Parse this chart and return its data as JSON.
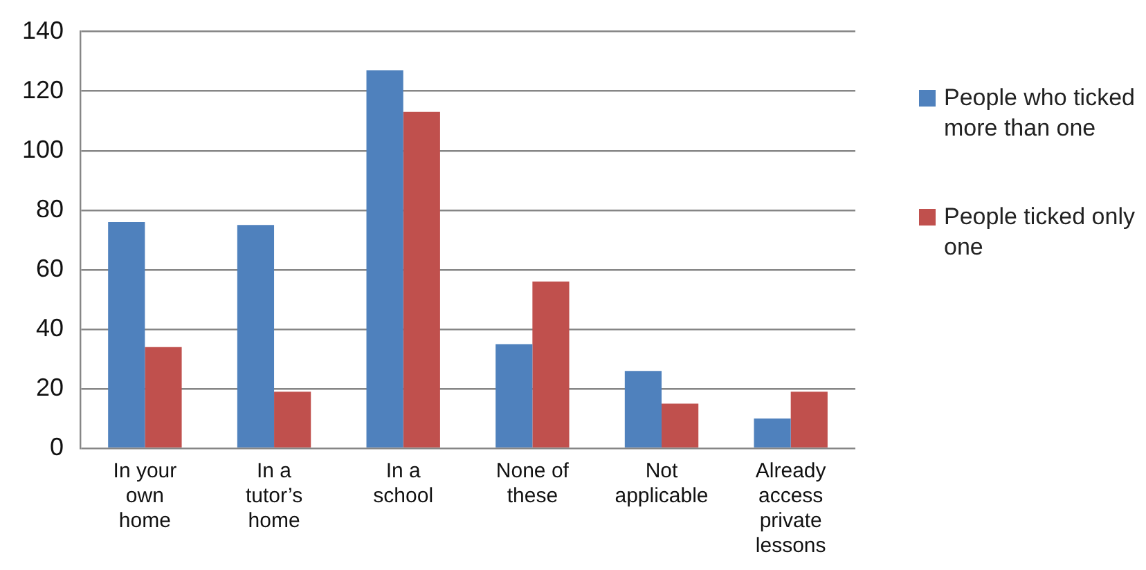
{
  "chart_data": {
    "type": "bar",
    "categories": [
      "In your own home",
      "In a tutor’s home",
      "In a school",
      "None of these",
      "Not applicable",
      "Already access private lessons"
    ],
    "series": [
      {
        "name": "People who ticked more than one",
        "color": "#4f81bd",
        "values": [
          76,
          75,
          127,
          35,
          26,
          10
        ]
      },
      {
        "name": "People ticked only one",
        "color": "#c0504d",
        "values": [
          34,
          19,
          113,
          56,
          15,
          19
        ]
      }
    ],
    "ylim": [
      0,
      140
    ],
    "yticks": [
      0,
      20,
      40,
      60,
      80,
      100,
      120,
      140
    ],
    "grid": "y",
    "legend": "right"
  }
}
